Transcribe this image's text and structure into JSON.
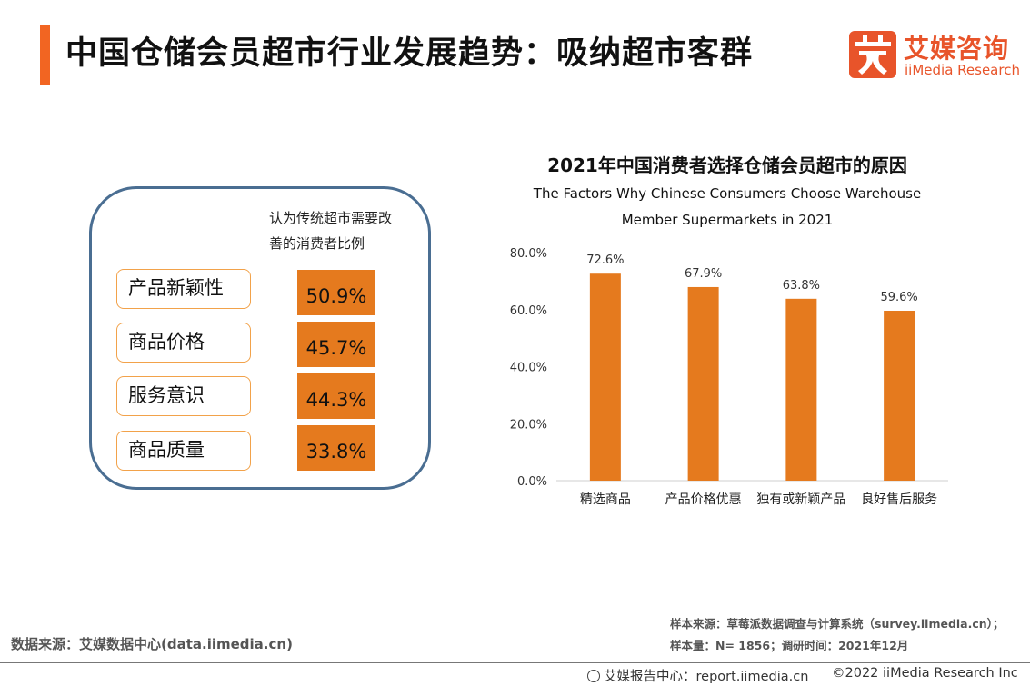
{
  "header": {
    "title": "中国仓储会员超市行业发展趋势：吸纳超市客群",
    "accent_color": "#F26522"
  },
  "logo": {
    "glyph": "艾",
    "name_cn": "艾媒咨询",
    "name_en": "iiMedia Research",
    "color": "#E8542A"
  },
  "left_panel": {
    "heading": "认为传统超市需要改善的消费者比例",
    "items": [
      {
        "label": "产品新颖性",
        "value": "50.9%"
      },
      {
        "label": "商品价格",
        "value": "45.7%"
      },
      {
        "label": "服务意识",
        "value": "44.3%"
      },
      {
        "label": "商品质量",
        "value": "33.8%"
      }
    ],
    "border_color": "#4A6E92",
    "value_color": "#E57A1E"
  },
  "chart_data": {
    "type": "bar",
    "title": "2021年中国消费者选择仓储会员超市的原因",
    "subtitle": "The Factors Why Chinese Consumers Choose Warehouse Member Supermarkets in 2021",
    "categories": [
      "精选商品",
      "产品价格优惠",
      "独有或新颖产品",
      "良好售后服务"
    ],
    "values": [
      72.6,
      67.9,
      63.8,
      59.6
    ],
    "data_labels": [
      "72.6%",
      "67.9%",
      "63.8%",
      "59.6%"
    ],
    "ylim": [
      0,
      80
    ],
    "yticks": [
      0,
      20,
      40,
      60,
      80
    ],
    "ytick_labels": [
      "0.0%",
      "20.0%",
      "40.0%",
      "60.0%",
      "80.0%"
    ],
    "grid": false,
    "bar_color": "#E57A1E"
  },
  "sources": {
    "data_source": "数据来源：艾媒数据中心(data.iimedia.cn)",
    "sample_source": "样本来源：草莓派数据调查与计算系统（survey.iimedia.cn）；",
    "sample_size": "样本量：N= 1856；调研时间：2021年12月"
  },
  "footer": {
    "report_center": "艾媒报告中心：report.iimedia.cn",
    "copyright": "©2022  iiMedia Research  Inc"
  }
}
